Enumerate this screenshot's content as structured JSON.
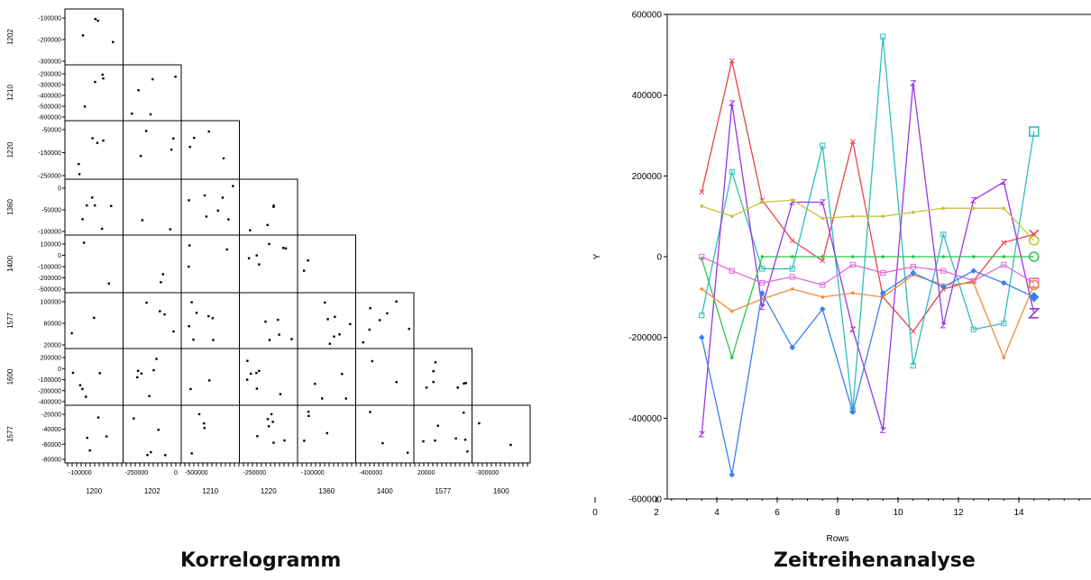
{
  "correlogram": {
    "caption": "Korrelogramm",
    "variables": [
      "1200",
      "1202",
      "1210",
      "1220",
      "1360",
      "1400",
      "1577",
      "1600"
    ],
    "row_labels": [
      "1202",
      "1210",
      "1220",
      "1360",
      "1400",
      "1577",
      "1600",
      "1577"
    ],
    "y_ticks": [
      [
        "-100000",
        "-200000",
        "-300000"
      ],
      [
        "-200000",
        "-300000",
        "-400000",
        "-500000",
        "-600000"
      ],
      [
        "-50000",
        "-150000",
        "-250000"
      ],
      [
        "0",
        "-50000",
        "-100000"
      ],
      [
        "100000",
        "0",
        "-100000",
        "-200000",
        "-500000"
      ],
      [
        "100000",
        "60000",
        "20000"
      ],
      [
        "200000",
        "0",
        "-100000",
        "-200000",
        "-400000"
      ],
      [
        "-20000",
        "-40000",
        "-60000",
        "-80000"
      ]
    ],
    "x_ticks": [
      [
        "-100000"
      ],
      [
        "-250000",
        "0"
      ],
      [
        "-500000"
      ],
      [
        "-250000"
      ],
      [
        "-100000"
      ],
      [
        "-400000"
      ],
      [
        "20000"
      ],
      [
        "-300000"
      ]
    ]
  },
  "chart_data": {
    "type": "line",
    "title": "Zeitreihenanalyse",
    "xlabel": "Rows",
    "ylabel": "Y",
    "xlim": [
      0,
      17
    ],
    "ylim": [
      -600000,
      600000
    ],
    "x_ticks": [
      "0",
      "2",
      "4",
      "6",
      "8",
      "10",
      "12",
      "14"
    ],
    "y_ticks": [
      "600000",
      "400000",
      "200000",
      "0",
      "-200000",
      "-400000",
      "-600000"
    ],
    "x": [
      3.5,
      4.5,
      5.5,
      6.5,
      7.5,
      8.5,
      9.5,
      10.5,
      11.5,
      12.5,
      13.5,
      14.5
    ],
    "series": [
      {
        "color": "#e8434b",
        "marker": "x",
        "values": [
          160000,
          485000,
          140000,
          40000,
          -10000,
          285000,
          -100000,
          -185000,
          -80000,
          -60000,
          35000,
          55000
        ]
      },
      {
        "color": "#2fbdbd",
        "marker": "square",
        "values": [
          -145000,
          210000,
          -30000,
          -30000,
          275000,
          -380000,
          545000,
          -270000,
          55000,
          -180000,
          -165000,
          310000
        ]
      },
      {
        "color": "#9b35e0",
        "marker": "z",
        "values": [
          -440000,
          380000,
          -125000,
          135000,
          135000,
          -180000,
          -430000,
          430000,
          -170000,
          140000,
          185000,
          -140000
        ]
      },
      {
        "color": "#c8c43a",
        "marker": "dot",
        "values": [
          125000,
          100000,
          135000,
          140000,
          95000,
          100000,
          100000,
          110000,
          120000,
          120000,
          120000,
          40000
        ]
      },
      {
        "color": "#2ec44a",
        "marker": "dot",
        "values": [
          -5000,
          -250000,
          0,
          0,
          0,
          0,
          0,
          0,
          0,
          0,
          0,
          0
        ]
      },
      {
        "color": "#e26ad8",
        "marker": "square",
        "values": [
          0,
          -35000,
          -65000,
          -50000,
          -70000,
          -20000,
          -40000,
          -25000,
          -35000,
          -60000,
          -20000,
          -65000
        ]
      },
      {
        "color": "#f08a3a",
        "marker": "dot",
        "values": [
          -80000,
          -135000,
          -105000,
          -80000,
          -100000,
          -90000,
          -100000,
          -45000,
          -70000,
          -65000,
          -250000,
          -70000
        ]
      },
      {
        "color": "#3a7ff0",
        "marker": "diamond",
        "values": [
          -200000,
          -540000,
          -90000,
          -225000,
          -130000,
          -385000,
          -90000,
          -40000,
          -75000,
          -35000,
          -65000,
          -100000
        ]
      }
    ]
  },
  "zeitreihe": {
    "caption": "Zeitreihenanalyse"
  }
}
